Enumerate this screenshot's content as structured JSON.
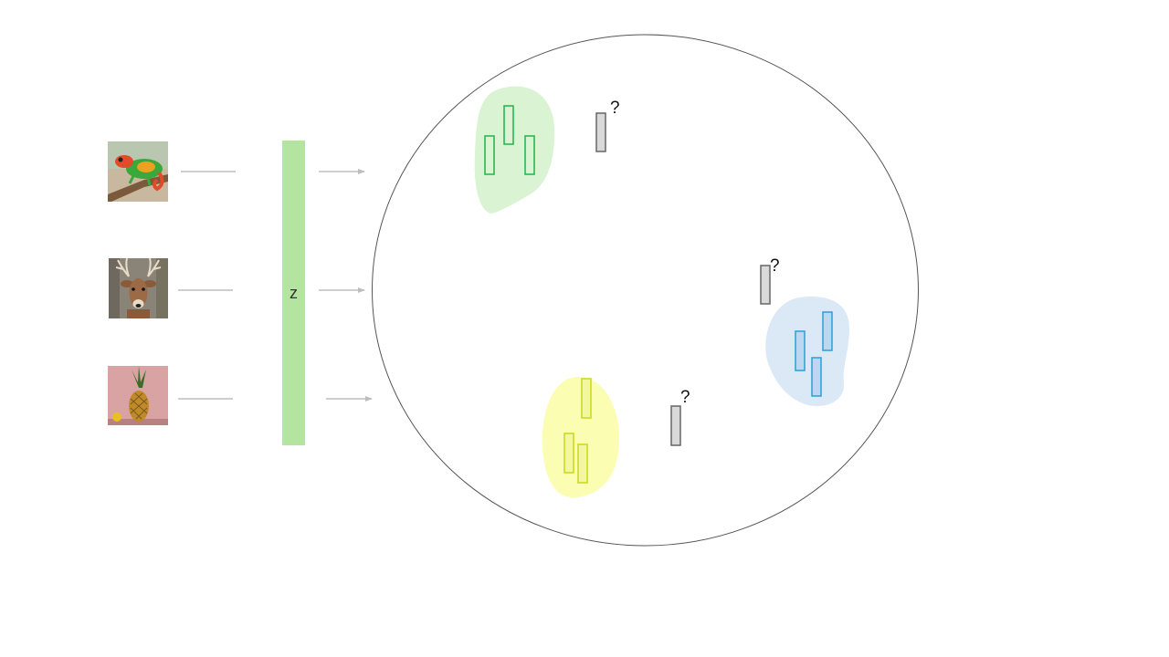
{
  "encoder": {
    "label": "z",
    "color": "#b3e5a1"
  },
  "inputs": [
    {
      "name": "chameleon",
      "icon": "chameleon-image"
    },
    {
      "name": "deer",
      "icon": "deer-image"
    },
    {
      "name": "pineapple",
      "icon": "pineapple-image"
    }
  ],
  "clusters": [
    {
      "name": "green-cluster",
      "fill": "#d9f3d3",
      "stroke": "#1db34a"
    },
    {
      "name": "blue-cluster",
      "fill": "#dbe9f7",
      "stroke": "#2a9fd6"
    },
    {
      "name": "yellow-cluster",
      "fill": "#fbfdb2",
      "stroke": "#c8d81a"
    }
  ],
  "unknown_points": [
    {
      "label": "?"
    },
    {
      "label": "?"
    },
    {
      "label": "?"
    }
  ],
  "colors": {
    "arrow": "#bdbdbd",
    "circle": "#555555",
    "unknown_fill": "#d9d9d9",
    "unknown_stroke": "#666666"
  }
}
